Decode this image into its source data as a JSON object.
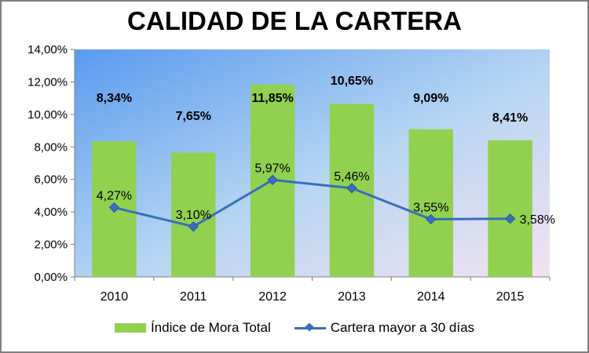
{
  "chart_data": {
    "type": "bar",
    "title": "CALIDAD DE LA CARTERA",
    "categories": [
      "2010",
      "2011",
      "2012",
      "2013",
      "2014",
      "2015"
    ],
    "series": [
      {
        "name": "Índice de Mora Total",
        "type": "bar",
        "values": [
          8.34,
          7.65,
          11.85,
          10.65,
          9.09,
          8.41
        ],
        "labels": [
          "8,34%",
          "7,65%",
          "11,85%",
          "10,65%",
          "9,09%",
          "8,41%"
        ],
        "color": "#92d050"
      },
      {
        "name": "Cartera mayor a 30 días",
        "type": "line",
        "values": [
          4.27,
          3.1,
          5.97,
          5.46,
          3.55,
          3.58
        ],
        "labels": [
          "4,27%",
          "3,10%",
          "5,97%",
          "5,46%",
          "3,55%",
          "3,58%"
        ],
        "color": "#3a6ebc"
      }
    ],
    "ylim": [
      0,
      14
    ],
    "yticks": [
      "0,00%",
      "2,00%",
      "4,00%",
      "6,00%",
      "8,00%",
      "10,00%",
      "12,00%",
      "14,00%"
    ],
    "xlabel": "",
    "ylabel": "",
    "grid": false,
    "legend": "bottom",
    "plot_background": [
      "#5a9bf0",
      "#b8d6f2",
      "#f2e2f2"
    ]
  }
}
